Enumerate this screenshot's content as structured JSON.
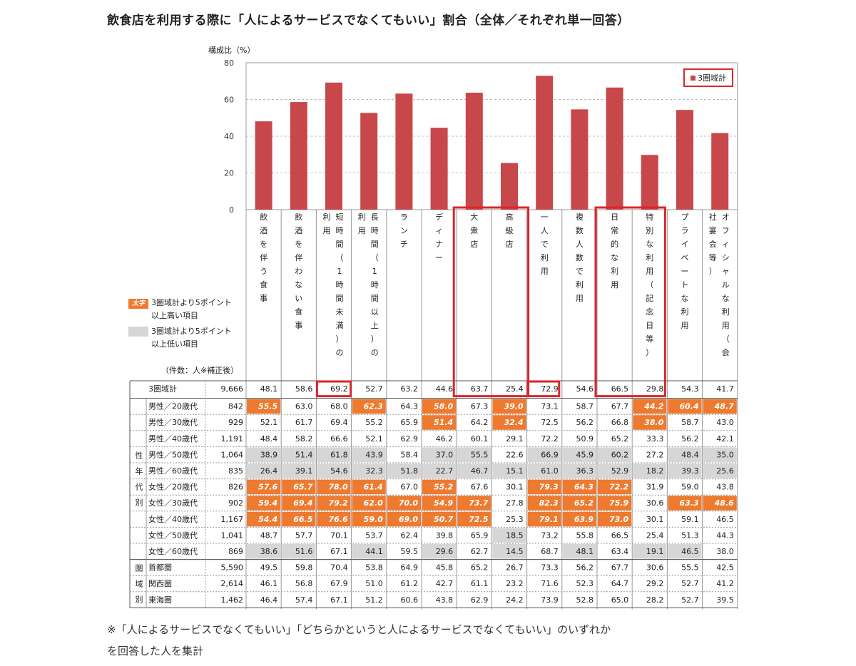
{
  "title": "飲食店を利用する際に「人によるサービスでなくてもいい」割合（全体／それぞれ単一回答）",
  "chart_data": {
    "type": "bar",
    "ylabel": "構成比（%）",
    "ylim": [
      0,
      80
    ],
    "yticks": [
      0,
      20,
      40,
      60,
      80
    ],
    "legend": "3圏域計",
    "categories": [
      "飲酒を伴う食事",
      "飲酒を伴わない食事",
      "短時間（1時間未満）の利用",
      "長時間（1時間以上）の利用",
      "ランチ",
      "ディナー",
      "大衆店",
      "高級店",
      "一人で利用",
      "複数人数で利用",
      "日常的な利用",
      "特別な利用（記念日等）",
      "プライベートな利用",
      "オフィシャルな利用（会社宴会等）"
    ],
    "series": [
      {
        "name": "3圏域計",
        "color": "#c8474a",
        "values": [
          48.1,
          58.6,
          69.2,
          52.7,
          63.2,
          44.6,
          63.7,
          25.4,
          72.9,
          54.6,
          66.5,
          29.8,
          54.3,
          41.7
        ]
      }
    ]
  },
  "columns": [
    [
      "飲",
      "酒",
      "を",
      "伴",
      "う",
      "食",
      "事"
    ],
    [
      "飲",
      "酒",
      "を",
      "伴",
      "わ",
      "な",
      "い",
      "食",
      "事"
    ],
    [
      "短",
      "時",
      "間",
      "（",
      "1",
      "時",
      "間",
      "未",
      "満",
      "）",
      "の",
      "利",
      "用"
    ],
    [
      "長",
      "時",
      "間",
      "（",
      "1",
      "時",
      "間",
      "以",
      "上",
      "）",
      "の",
      "利",
      "用"
    ],
    [
      "ラ",
      "ン",
      "チ"
    ],
    [
      "デ",
      "ィ",
      "ナ",
      "ー"
    ],
    [
      "大",
      "衆",
      "店"
    ],
    [
      "高",
      "級",
      "店"
    ],
    [
      "一",
      "人",
      "で",
      "利",
      "用"
    ],
    [
      "複",
      "数",
      "人",
      "数",
      "で",
      "利",
      "用"
    ],
    [
      "日",
      "常",
      "的",
      "な",
      "利",
      "用"
    ],
    [
      "特",
      "別",
      "な",
      "利",
      "用",
      "（",
      "記",
      "念",
      "日",
      "等",
      "）"
    ],
    [
      "プ",
      "ラ",
      "イ",
      "ベ",
      "ー",
      "ト",
      "な",
      "利",
      "用"
    ],
    [
      "オ",
      "フ",
      "ィ",
      "シ",
      "ャ",
      "ル",
      "な",
      "利",
      "用",
      "（",
      "会",
      "社",
      "宴",
      "会",
      "等",
      "）"
    ]
  ],
  "legend_notes": {
    "high_badge": "太字",
    "high": [
      "3圏域計より5ポイント",
      "以上高い項目"
    ],
    "low": [
      "3圏域計より5ポイント",
      "以上低い項目"
    ],
    "count_label": "（件数：人※補正後）"
  },
  "total_row": {
    "label": "3圏域計",
    "n": "9,666",
    "values": [
      "48.1",
      "58.6",
      "69.2",
      "52.7",
      "63.2",
      "44.6",
      "63.7",
      "25.4",
      "72.9",
      "54.6",
      "66.5",
      "29.8",
      "54.3",
      "41.7"
    ]
  },
  "groups": [
    {
      "label": [
        "性",
        "年",
        "代",
        "別"
      ],
      "rows": [
        {
          "label": "男性／20歳代",
          "n": "842",
          "values": [
            "55.5",
            "63.0",
            "68.0",
            "62.3",
            "64.3",
            "58.0",
            "67.3",
            "39.0",
            "73.1",
            "58.7",
            "67.7",
            "44.2",
            "60.4",
            "48.7"
          ],
          "flags": [
            "H",
            "",
            "",
            "H",
            "",
            "H",
            "",
            "H",
            "",
            "",
            "",
            "H",
            "H",
            "H"
          ]
        },
        {
          "label": "男性／30歳代",
          "n": "929",
          "values": [
            "52.1",
            "61.7",
            "69.4",
            "55.2",
            "65.9",
            "51.4",
            "64.2",
            "32.4",
            "72.5",
            "56.2",
            "66.8",
            "38.0",
            "58.7",
            "43.0"
          ],
          "flags": [
            "",
            "",
            "",
            "",
            "",
            "H",
            "",
            "H",
            "",
            "",
            "",
            "H",
            "",
            ""
          ]
        },
        {
          "label": "男性／40歳代",
          "n": "1,191",
          "values": [
            "48.4",
            "58.2",
            "66.6",
            "52.1",
            "62.9",
            "46.2",
            "60.1",
            "29.1",
            "72.2",
            "50.9",
            "65.2",
            "33.3",
            "56.2",
            "42.1"
          ],
          "flags": [
            "",
            "",
            "",
            "",
            "",
            "",
            "",
            "",
            "",
            "",
            "",
            "",
            "",
            ""
          ]
        },
        {
          "label": "男性／50歳代",
          "n": "1,064",
          "values": [
            "38.9",
            "51.4",
            "61.8",
            "43.9",
            "58.4",
            "37.0",
            "55.5",
            "22.6",
            "66.9",
            "45.9",
            "60.2",
            "27.2",
            "48.4",
            "35.0"
          ],
          "flags": [
            "L",
            "L",
            "L",
            "L",
            "",
            "L",
            "L",
            "",
            "L",
            "L",
            "L",
            "",
            "L",
            "L"
          ]
        },
        {
          "label": "男性／60歳代",
          "n": "835",
          "values": [
            "26.4",
            "39.1",
            "54.6",
            "32.3",
            "51.8",
            "22.7",
            "46.7",
            "15.1",
            "61.0",
            "36.3",
            "52.9",
            "18.2",
            "39.3",
            "25.6"
          ],
          "flags": [
            "L",
            "L",
            "L",
            "L",
            "L",
            "L",
            "L",
            "L",
            "L",
            "L",
            "L",
            "L",
            "L",
            "L"
          ]
        },
        {
          "label": "女性／20歳代",
          "n": "826",
          "values": [
            "57.6",
            "65.7",
            "78.0",
            "61.4",
            "67.0",
            "55.2",
            "67.6",
            "30.1",
            "79.3",
            "64.3",
            "72.2",
            "31.9",
            "59.0",
            "43.8"
          ],
          "flags": [
            "H",
            "H",
            "H",
            "H",
            "",
            "H",
            "",
            "",
            "H",
            "H",
            "H",
            "",
            "",
            ""
          ]
        },
        {
          "label": "女性／30歳代",
          "n": "902",
          "values": [
            "59.4",
            "69.4",
            "79.2",
            "62.0",
            "70.0",
            "54.9",
            "73.7",
            "27.8",
            "82.3",
            "65.2",
            "75.9",
            "30.6",
            "63.3",
            "48.6"
          ],
          "flags": [
            "H",
            "H",
            "H",
            "H",
            "H",
            "H",
            "H",
            "",
            "H",
            "H",
            "H",
            "",
            "H",
            "H"
          ]
        },
        {
          "label": "女性／40歳代",
          "n": "1,167",
          "values": [
            "54.4",
            "66.5",
            "76.6",
            "59.0",
            "69.0",
            "50.7",
            "72.5",
            "25.3",
            "79.1",
            "63.9",
            "73.0",
            "30.1",
            "59.1",
            "46.5"
          ],
          "flags": [
            "H",
            "H",
            "H",
            "H",
            "H",
            "H",
            "H",
            "",
            "H",
            "H",
            "H",
            "",
            "",
            ""
          ]
        },
        {
          "label": "女性／50歳代",
          "n": "1,041",
          "values": [
            "48.7",
            "57.7",
            "70.1",
            "53.7",
            "62.4",
            "39.8",
            "65.9",
            "18.5",
            "73.2",
            "55.8",
            "66.5",
            "25.4",
            "51.3",
            "44.3"
          ],
          "flags": [
            "",
            "",
            "",
            "",
            "",
            "",
            "",
            "L",
            "",
            "",
            "",
            "",
            "",
            ""
          ]
        },
        {
          "label": "女性／60歳代",
          "n": "869",
          "values": [
            "38.6",
            "51.6",
            "67.1",
            "44.1",
            "59.5",
            "29.6",
            "62.7",
            "14.5",
            "68.7",
            "48.1",
            "63.4",
            "19.1",
            "46.5",
            "38.0"
          ],
          "flags": [
            "L",
            "L",
            "",
            "L",
            "",
            "L",
            "",
            "L",
            "",
            "L",
            "",
            "L",
            "L",
            ""
          ]
        }
      ]
    },
    {
      "label": [
        "圏",
        "域",
        "別"
      ],
      "rows": [
        {
          "label": "首都圏",
          "n": "5,590",
          "values": [
            "49.5",
            "59.8",
            "70.4",
            "53.8",
            "64.9",
            "45.8",
            "65.2",
            "26.7",
            "73.3",
            "56.2",
            "67.7",
            "30.6",
            "55.5",
            "42.5"
          ],
          "flags": [
            "",
            "",
            "",
            "",
            "",
            "",
            "",
            "",
            "",
            "",
            "",
            "",
            "",
            ""
          ]
        },
        {
          "label": "関西圏",
          "n": "2,614",
          "values": [
            "46.1",
            "56.8",
            "67.9",
            "51.0",
            "61.2",
            "42.7",
            "61.1",
            "23.2",
            "71.6",
            "52.3",
            "64.7",
            "29.2",
            "52.7",
            "41.2"
          ],
          "flags": [
            "",
            "",
            "",
            "",
            "",
            "",
            "",
            "",
            "",
            "",
            "",
            "",
            "",
            ""
          ]
        },
        {
          "label": "東海圏",
          "n": "1,462",
          "values": [
            "46.4",
            "57.4",
            "67.1",
            "51.2",
            "60.6",
            "43.8",
            "62.9",
            "24.2",
            "73.9",
            "52.8",
            "65.0",
            "28.2",
            "52.7",
            "39.5"
          ],
          "flags": [
            "",
            "",
            "",
            "",
            "",
            "",
            "",
            "",
            "",
            "",
            "",
            "",
            "",
            ""
          ]
        }
      ]
    }
  ],
  "highlight_colors": {
    "high": "#ee7a30",
    "low": "#d6d6d6",
    "box": "#d9262c",
    "bar": "#c8474a"
  },
  "footnote": [
    "※「人によるサービスでなくてもいい」「どちらかというと人によるサービスでなくてもいい」のいずれか",
    "を回答した人を集計"
  ]
}
